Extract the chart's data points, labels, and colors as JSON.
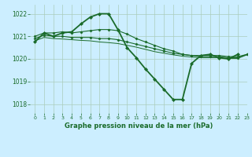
{
  "background_color": "#cceeff",
  "grid_color": "#aaccbb",
  "line_color": "#1a6b2a",
  "title": "Graphe pression niveau de la mer (hPa)",
  "xlim": [
    -0.5,
    23
  ],
  "ylim": [
    1017.6,
    1022.4
  ],
  "yticks": [
    1018,
    1019,
    1020,
    1021,
    1022
  ],
  "xticks": [
    0,
    1,
    2,
    3,
    4,
    5,
    6,
    7,
    8,
    9,
    10,
    11,
    12,
    13,
    14,
    15,
    16,
    17,
    18,
    19,
    20,
    21,
    22,
    23
  ],
  "series": [
    {
      "x": [
        0,
        1,
        2,
        3,
        4,
        5,
        6,
        7,
        8,
        9,
        10,
        11,
        12,
        13,
        14,
        15,
        16,
        17,
        18,
        19,
        20,
        21,
        22,
        23
      ],
      "y": [
        1020.75,
        1021.15,
        1021.0,
        1021.15,
        1021.2,
        1021.55,
        1021.85,
        1022.0,
        1022.0,
        1021.3,
        1020.5,
        1020.05,
        1019.55,
        1019.1,
        1018.65,
        1018.2,
        1018.2,
        1019.8,
        1020.15,
        1020.2,
        1020.05,
        1020.0,
        1020.2,
        null
      ],
      "marker": "D",
      "markersize": 2.0,
      "linewidth": 1.3
    },
    {
      "x": [
        0,
        1,
        2,
        3,
        4,
        5,
        6,
        7,
        8,
        9,
        10,
        11,
        12,
        13,
        14,
        15,
        16,
        17,
        18,
        19,
        20,
        21,
        22,
        23
      ],
      "y": [
        1021.0,
        1021.15,
        1021.15,
        1021.2,
        1021.15,
        1021.2,
        1021.25,
        1021.3,
        1021.3,
        1021.25,
        1021.1,
        1020.9,
        1020.75,
        1020.6,
        1020.45,
        1020.35,
        1020.2,
        1020.15,
        1020.15,
        1020.15,
        1020.15,
        1020.1,
        1020.1,
        1020.2
      ],
      "marker": "D",
      "markersize": 1.5,
      "linewidth": 0.8
    },
    {
      "x": [
        0,
        1,
        2,
        3,
        4,
        5,
        6,
        7,
        8,
        9,
        10,
        11,
        12,
        13,
        14,
        15,
        16,
        17,
        18,
        19,
        20,
        21,
        22,
        23
      ],
      "y": [
        1020.9,
        1021.05,
        1021.0,
        1021.0,
        1020.95,
        1020.95,
        1020.95,
        1020.9,
        1020.9,
        1020.85,
        1020.75,
        1020.65,
        1020.55,
        1020.45,
        1020.35,
        1020.25,
        1020.2,
        1020.15,
        1020.1,
        1020.1,
        1020.1,
        1020.05,
        1020.05,
        1020.2
      ],
      "marker": "D",
      "markersize": 1.5,
      "linewidth": 0.8
    },
    {
      "x": [
        0,
        1,
        2,
        3,
        4,
        5,
        6,
        7,
        8,
        9,
        10,
        11,
        12,
        13,
        14,
        15,
        16,
        17,
        18,
        19,
        20,
        21,
        22,
        23
      ],
      "y": [
        1020.8,
        1020.95,
        1020.9,
        1020.88,
        1020.85,
        1020.82,
        1020.8,
        1020.75,
        1020.72,
        1020.68,
        1020.6,
        1020.52,
        1020.42,
        1020.32,
        1020.25,
        1020.18,
        1020.12,
        1020.08,
        1020.05,
        1020.05,
        1020.05,
        1020.02,
        1020.02,
        1020.18
      ],
      "marker": null,
      "markersize": 0,
      "linewidth": 0.7
    }
  ]
}
